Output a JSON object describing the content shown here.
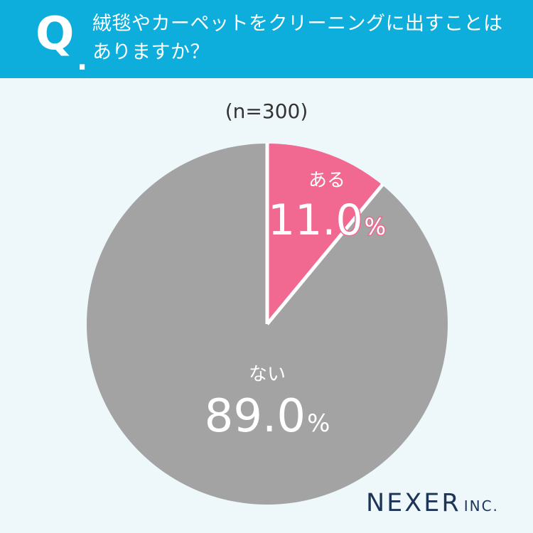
{
  "header": {
    "q_mark": "Q",
    "q_dot": ".",
    "question_line1": "絨毯やカーペットをクリーニングに出すことは",
    "question_line2": "ありますか？"
  },
  "sample_size": "(n=300)",
  "logo": {
    "main": "NEXER",
    "sub": "INC."
  },
  "colors": {
    "header_bg": "#0daedb",
    "background": "#eef7fa",
    "yes": "#f16891",
    "no": "#a3a3a3"
  },
  "chart_data": {
    "type": "pie",
    "title": "絨毯やカーペットをクリーニングに出すことはありますか？",
    "start_angle_deg": 0,
    "direction": "clockwise",
    "slices": [
      {
        "label": "ある",
        "value": 11.0,
        "value_text": "11.0",
        "unit": "%",
        "color": "#f16891"
      },
      {
        "label": "ない",
        "value": 89.0,
        "value_text": "89.0",
        "unit": "%",
        "color": "#a3a3a3"
      }
    ]
  }
}
